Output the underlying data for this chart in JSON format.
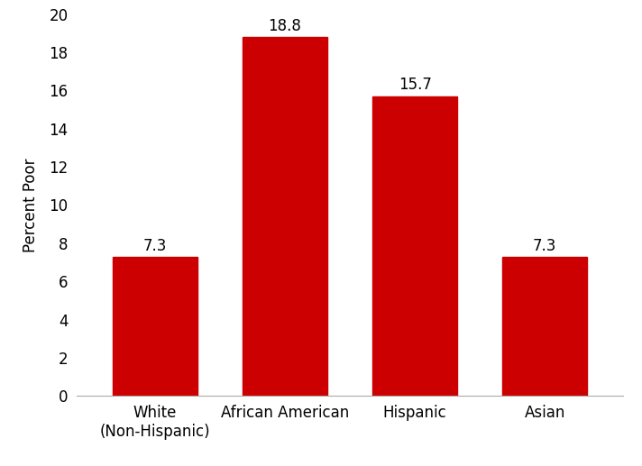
{
  "categories": [
    "White\n(Non-Hispanic)",
    "African American",
    "Hispanic",
    "Asian"
  ],
  "values": [
    7.3,
    18.8,
    15.7,
    7.3
  ],
  "bar_color": "#cc0000",
  "ylabel": "Percent Poor",
  "ylim": [
    0,
    20
  ],
  "yticks": [
    0,
    2,
    4,
    6,
    8,
    10,
    12,
    14,
    16,
    18,
    20
  ],
  "bar_width": 0.65,
  "label_fontsize": 12,
  "tick_fontsize": 12,
  "ylabel_fontsize": 12,
  "annotation_fontsize": 12,
  "background_color": "#ffffff"
}
